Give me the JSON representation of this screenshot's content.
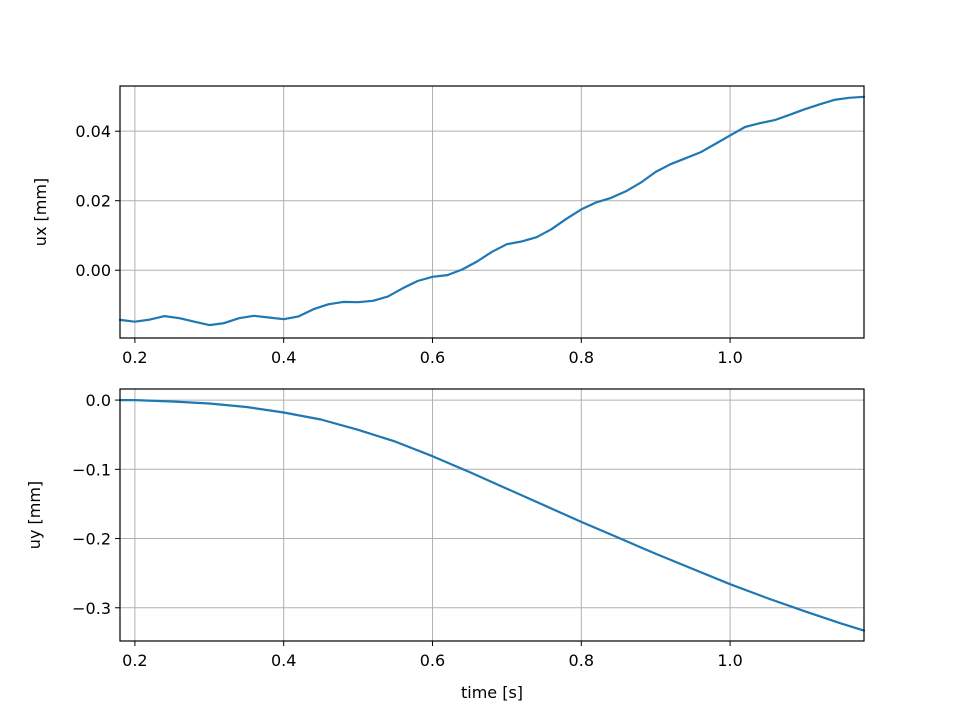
{
  "chart_data": [
    {
      "type": "line",
      "xlim": [
        0.18,
        1.18
      ],
      "ylim": [
        -0.0195,
        0.053
      ],
      "xticks": [
        0.2,
        0.4,
        0.6,
        0.8,
        1.0
      ],
      "xtick_labels": [
        "0.2",
        "0.4",
        "0.6",
        "0.8",
        "1.0"
      ],
      "yticks": [
        0.0,
        0.02,
        0.04
      ],
      "ytick_labels": [
        "0.00",
        "0.02",
        "0.04"
      ],
      "xlabel": "",
      "ylabel": "ux [mm]",
      "grid": true,
      "color": "#1f77b4",
      "series": [
        {
          "x": [
            0.18,
            0.2,
            0.22,
            0.24,
            0.26,
            0.28,
            0.3,
            0.32,
            0.34,
            0.36,
            0.38,
            0.4,
            0.42,
            0.44,
            0.46,
            0.48,
            0.5,
            0.52,
            0.54,
            0.56,
            0.58,
            0.6,
            0.62,
            0.64,
            0.66,
            0.68,
            0.7,
            0.72,
            0.74,
            0.76,
            0.78,
            0.8,
            0.82,
            0.84,
            0.86,
            0.88,
            0.9,
            0.92,
            0.94,
            0.96,
            0.98,
            1.0,
            1.02,
            1.04,
            1.06,
            1.08,
            1.1,
            1.12,
            1.14,
            1.16,
            1.18
          ],
          "y": [
            -0.0143,
            -0.0148,
            -0.0142,
            -0.0132,
            -0.0138,
            -0.0148,
            -0.0158,
            -0.0152,
            -0.0138,
            -0.0131,
            -0.0136,
            -0.0141,
            -0.0133,
            -0.0112,
            -0.0098,
            -0.0091,
            -0.0092,
            -0.0088,
            -0.0076,
            -0.0052,
            -0.0031,
            -0.0019,
            -0.0014,
            0.0002,
            0.0025,
            0.0053,
            0.0075,
            0.0083,
            0.0095,
            0.0118,
            0.0148,
            0.0175,
            0.0195,
            0.0208,
            0.0227,
            0.0252,
            0.0283,
            0.0305,
            0.0322,
            0.0339,
            0.0363,
            0.0388,
            0.0412,
            0.0423,
            0.0432,
            0.0447,
            0.0463,
            0.0477,
            0.049,
            0.0496,
            0.0499
          ]
        }
      ]
    },
    {
      "type": "line",
      "xlim": [
        0.18,
        1.18
      ],
      "ylim": [
        -0.348,
        0.016
      ],
      "xticks": [
        0.2,
        0.4,
        0.6,
        0.8,
        1.0
      ],
      "xtick_labels": [
        "0.2",
        "0.4",
        "0.6",
        "0.8",
        "1.0"
      ],
      "yticks": [
        0.0,
        -0.1,
        -0.2,
        -0.3
      ],
      "ytick_labels": [
        "0.0",
        "−0.1",
        "−0.2",
        "−0.3"
      ],
      "xlabel": "time [s]",
      "ylabel": "uy [mm]",
      "grid": true,
      "color": "#1f77b4",
      "series": [
        {
          "x": [
            0.18,
            0.2,
            0.25,
            0.3,
            0.35,
            0.4,
            0.45,
            0.5,
            0.55,
            0.6,
            0.65,
            0.7,
            0.75,
            0.8,
            0.85,
            0.9,
            0.95,
            1.0,
            1.05,
            1.1,
            1.15,
            1.18
          ],
          "y": [
            0.0,
            0.0,
            -0.002,
            -0.005,
            -0.01,
            -0.018,
            -0.028,
            -0.043,
            -0.06,
            -0.081,
            -0.104,
            -0.128,
            -0.152,
            -0.176,
            -0.199,
            -0.222,
            -0.244,
            -0.266,
            -0.286,
            -0.305,
            -0.323,
            -0.333
          ]
        }
      ]
    }
  ]
}
